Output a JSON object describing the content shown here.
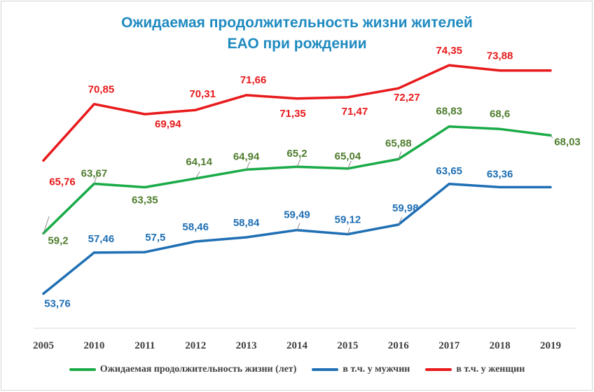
{
  "chart_data": {
    "type": "line",
    "title_lines": [
      "Ожидаемая продолжительность  жизни жителей",
      "ЕАО при рождении"
    ],
    "categories": [
      "2005",
      "2010",
      "2011",
      "2012",
      "2013",
      "2014",
      "2015",
      "2016",
      "2017",
      "2018",
      "2019"
    ],
    "series": [
      {
        "name": "Ожидаемая продолжительность жизни (лет)",
        "color": "#1aab48",
        "label_color": "#4f7d2e",
        "values": [
          59.2,
          63.67,
          63.35,
          64.14,
          64.94,
          65.2,
          65.04,
          65.88,
          68.83,
          68.6,
          68.03
        ],
        "labels": [
          "59,2",
          "63,67",
          "63,35",
          "64,14",
          "64,94",
          "65,2",
          "65,04",
          "65,88",
          "68,83",
          "68,6",
          "68,03"
        ]
      },
      {
        "name": "в т.ч. у мужчин",
        "color": "#1f6fb4",
        "label_color": "#1f6fb4",
        "values": [
          53.76,
          57.46,
          57.5,
          58.46,
          58.84,
          59.49,
          59.12,
          59.98,
          63.65,
          63.36,
          63.36
        ],
        "labels": [
          "53,76",
          "57,46",
          "57,5",
          "58,46",
          "58,84",
          "59,49",
          "59,12",
          "59,98",
          "63,65",
          "63,36",
          ""
        ]
      },
      {
        "name": "в т.ч. у женщин",
        "color": "#e8191b",
        "label_color": "#e8191b",
        "values": [
          65.76,
          70.85,
          69.94,
          70.31,
          71.66,
          71.35,
          71.47,
          72.27,
          74.35,
          73.88,
          73.88
        ],
        "labels": [
          "65,76",
          "70,85",
          "69,94",
          "70,31",
          "71,66",
          "71,35",
          "71,47",
          "72,27",
          "74,35",
          "73,88",
          ""
        ]
      }
    ],
    "xlabel": "",
    "ylabel": "",
    "ylim": [
      50.7,
      75.5
    ],
    "grid": false,
    "legend_position": "bottom"
  }
}
